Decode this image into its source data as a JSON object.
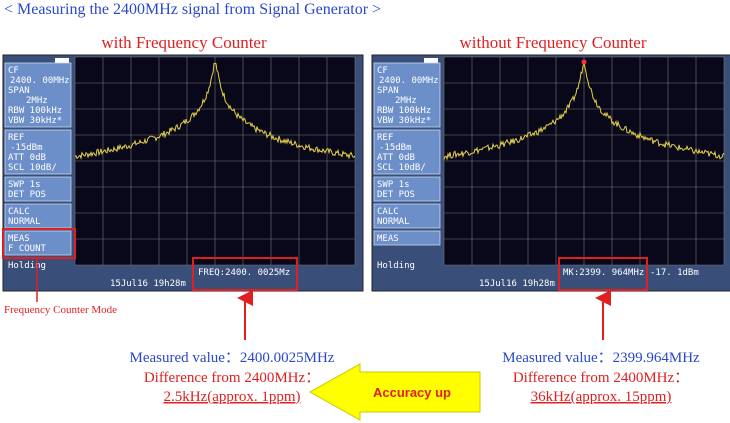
{
  "title": "< Measuring the 2400MHz signal from Signal Generator >",
  "screens": [
    {
      "heading": "with Frequency Counter",
      "menu": [
        [
          "CF",
          "2400. 00MHz",
          "SPAN",
          "2MHz",
          "RBW 100kHz",
          "VBW 30kHz*"
        ],
        [
          "REF",
          "-15dBm",
          "ATT 0dB",
          "SCL 10dB/"
        ],
        [
          "SWP 1s",
          "DET POS"
        ],
        [
          "CALC",
          "NORMAL"
        ],
        [
          "MEAS",
          "F COUNT"
        ]
      ],
      "status": "Holding",
      "timestamp": "15Jul16 19h28m",
      "readout": [
        "FREQ:2400. 0025Mz"
      ],
      "measured": "Measured value：2400.0025MHz",
      "difference_label": "Difference from 2400MHz：",
      "difference": "2.5kHz(approx. 1ppm)"
    },
    {
      "heading": "without Frequency Counter",
      "menu": [
        [
          "CF",
          "2400. 00MHz",
          "SPAN",
          "2MHz",
          "RBW 100kHz",
          "VBW 30kHz*"
        ],
        [
          "REF",
          "-15dBm",
          "ATT 0dB",
          "SCL 10dB/"
        ],
        [
          "SWP 1s",
          "DET POS"
        ],
        [
          "CALC",
          "NORMAL"
        ],
        [
          "MEAS"
        ]
      ],
      "status": "Holding",
      "timestamp": "15Jul16 19h28m",
      "readout": [
        "MK:2399. 964MHz",
        "-17. 1dBm"
      ],
      "measured": "Measured value：2399.964MHz",
      "difference_label": "Difference from 2400MHz：",
      "difference": "36kHz(approx. 15ppm)"
    }
  ],
  "mode_note": "Frequency Counter Mode",
  "arrow_label": "Accuracy up"
}
